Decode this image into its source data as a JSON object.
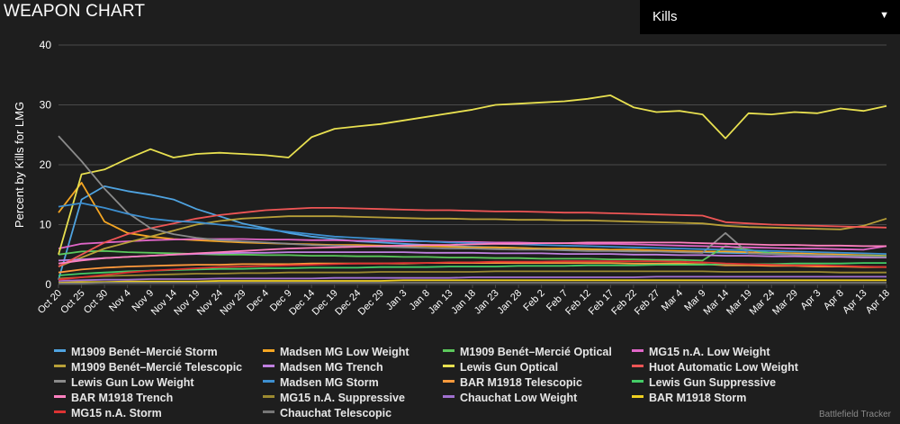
{
  "header": {
    "title": "WEAPON CHART"
  },
  "metric_select": {
    "value": "Kills",
    "arrow": "▼"
  },
  "watermark": "Battlefield Tracker",
  "colors": {
    "background": "#1e1e1e",
    "grid": "#4a4a4a",
    "axis_text": "#ffffff"
  },
  "chart_data": {
    "type": "line",
    "title": "",
    "xlabel": "",
    "ylabel": "Percent by Kills for LMG",
    "ylim": [
      0,
      40
    ],
    "yticks": [
      0,
      10,
      20,
      30,
      40
    ],
    "grid": true,
    "legend_position": "bottom",
    "x_tick_labels": [
      "Oct 20",
      "Oct 25",
      "Oct 30",
      "Nov 4",
      "Nov 9",
      "Nov 14",
      "Nov 19",
      "Nov 24",
      "Nov 29",
      "Dec 4",
      "Dec 9",
      "Dec 14",
      "Dec 19",
      "Dec 24",
      "Dec 29",
      "Jan 3",
      "Jan 8",
      "Jan 13",
      "Jan 18",
      "Jan 23",
      "Jan 28",
      "Feb 2",
      "Feb 7",
      "Feb 12",
      "Feb 17",
      "Feb 22",
      "Feb 27",
      "Mar 4",
      "Mar 9",
      "Mar 14",
      "Mar 19",
      "Mar 24",
      "Mar 29",
      "Apr 3",
      "Apr 8",
      "Apr 13",
      "Apr 18"
    ],
    "series": [
      {
        "name": "M1909 Benét–Mercié Storm",
        "color": "#4fa3e0",
        "values": [
          0.8,
          14.2,
          16.4,
          15.6,
          15.0,
          14.2,
          12.6,
          11.4,
          10.2,
          9.4,
          8.6,
          8.0,
          7.6,
          7.2,
          7.0,
          6.8,
          6.6,
          6.4,
          6.3,
          6.2,
          6.1,
          6.0,
          5.9,
          5.9,
          5.8,
          5.7,
          5.6,
          5.5,
          5.4,
          5.3,
          5.2,
          5.1,
          5.0,
          4.9,
          4.8,
          4.7,
          4.6
        ]
      },
      {
        "name": "Madsen MG Low Weight",
        "color": "#f5a623",
        "values": [
          12.0,
          17.0,
          10.5,
          8.6,
          8.0,
          7.6,
          7.4,
          7.2,
          7.0,
          6.9,
          6.8,
          6.7,
          6.6,
          6.6,
          6.5,
          6.4,
          6.4,
          6.3,
          6.2,
          6.2,
          6.1,
          6.0,
          6.0,
          5.9,
          5.8,
          5.8,
          5.7,
          5.6,
          5.5,
          5.5,
          5.4,
          5.3,
          5.2,
          5.1,
          5.0,
          4.9,
          4.8
        ]
      },
      {
        "name": "M1909 Benét–Mercié Optical",
        "color": "#5cc85c",
        "values": [
          5.0,
          5.5,
          5.6,
          5.4,
          5.3,
          5.2,
          5.1,
          5.0,
          5.0,
          4.9,
          4.9,
          4.8,
          4.8,
          4.7,
          4.7,
          4.6,
          4.6,
          4.5,
          4.5,
          4.4,
          4.4,
          4.3,
          4.3,
          4.3,
          4.2,
          4.2,
          4.1,
          4.1,
          4.0,
          6.4,
          5.8,
          5.2,
          5.0,
          4.9,
          4.8,
          4.8,
          4.7
        ]
      },
      {
        "name": "MG15 n.A. Low Weight",
        "color": "#e066c8",
        "values": [
          6.0,
          6.8,
          7.0,
          7.2,
          7.4,
          7.5,
          7.6,
          7.6,
          7.6,
          7.5,
          7.5,
          7.4,
          7.4,
          7.3,
          7.3,
          7.2,
          7.2,
          7.1,
          7.1,
          7.0,
          7.0,
          6.9,
          6.9,
          6.8,
          6.8,
          6.7,
          6.6,
          6.5,
          6.4,
          6.3,
          6.2,
          6.1,
          6.0,
          6.0,
          5.9,
          5.8,
          6.4
        ]
      },
      {
        "name": "M1909 Benét–Mercié Telescopic",
        "color": "#b8a038",
        "values": [
          3.0,
          4.5,
          6.0,
          7.0,
          8.0,
          9.0,
          10.0,
          10.6,
          11.0,
          11.2,
          11.4,
          11.4,
          11.4,
          11.3,
          11.2,
          11.1,
          11.0,
          11.0,
          10.9,
          10.9,
          10.8,
          10.8,
          10.7,
          10.7,
          10.6,
          10.5,
          10.4,
          10.3,
          10.2,
          9.8,
          9.6,
          9.5,
          9.4,
          9.3,
          9.2,
          9.8,
          11.0
        ]
      },
      {
        "name": "Madsen MG Trench",
        "color": "#c080e0",
        "values": [
          4.0,
          4.2,
          4.4,
          4.6,
          4.8,
          5.0,
          5.1,
          5.2,
          5.3,
          5.3,
          5.4,
          5.4,
          5.4,
          5.4,
          5.4,
          5.4,
          5.3,
          5.3,
          5.3,
          5.2,
          5.2,
          5.2,
          5.1,
          5.1,
          5.1,
          5.0,
          5.0,
          4.9,
          4.9,
          4.8,
          4.8,
          4.7,
          4.7,
          4.6,
          4.6,
          4.5,
          4.5
        ]
      },
      {
        "name": "Lewis Gun Optical",
        "color": "#e8e050",
        "values": [
          5.0,
          18.4,
          19.2,
          21.0,
          22.6,
          21.2,
          21.8,
          22.0,
          21.8,
          21.6,
          21.2,
          24.6,
          26.0,
          26.4,
          26.8,
          27.4,
          28.0,
          28.6,
          29.2,
          30.0,
          30.2,
          30.4,
          30.6,
          31.0,
          31.6,
          29.6,
          28.8,
          29.0,
          28.4,
          24.4,
          28.6,
          28.4,
          28.8,
          28.6,
          29.4,
          29.0,
          29.8
        ]
      },
      {
        "name": "Huot Automatic Low Weight",
        "color": "#ee5555",
        "values": [
          3.0,
          5.0,
          7.0,
          8.4,
          9.4,
          10.2,
          11.0,
          11.6,
          12.0,
          12.4,
          12.6,
          12.8,
          12.8,
          12.7,
          12.6,
          12.5,
          12.4,
          12.4,
          12.3,
          12.2,
          12.2,
          12.1,
          12.0,
          12.0,
          11.9,
          11.8,
          11.7,
          11.6,
          11.5,
          10.4,
          10.2,
          10.0,
          9.9,
          9.8,
          9.7,
          9.6,
          9.5
        ]
      },
      {
        "name": "Lewis Gun Low Weight",
        "color": "#8a8a8a",
        "values": [
          24.8,
          20.6,
          16.0,
          12.0,
          9.4,
          8.4,
          7.8,
          7.4,
          7.2,
          7.0,
          6.8,
          6.6,
          6.5,
          6.4,
          6.3,
          6.2,
          6.1,
          6.0,
          6.0,
          5.9,
          5.8,
          5.8,
          5.7,
          5.6,
          5.6,
          5.5,
          5.5,
          5.4,
          5.3,
          8.6,
          5.2,
          5.1,
          5.0,
          4.9,
          4.8,
          4.7,
          4.6
        ]
      },
      {
        "name": "Madsen MG Storm",
        "color": "#3d8fd0",
        "values": [
          13.0,
          13.6,
          12.8,
          11.8,
          11.0,
          10.6,
          10.4,
          10.0,
          9.6,
          9.2,
          8.8,
          8.4,
          8.0,
          7.8,
          7.6,
          7.4,
          7.2,
          7.0,
          6.9,
          6.8,
          6.7,
          6.6,
          6.5,
          6.4,
          6.3,
          6.2,
          6.1,
          6.0,
          5.9,
          5.8,
          5.7,
          5.6,
          5.5,
          5.4,
          5.3,
          5.2,
          5.1
        ]
      },
      {
        "name": "BAR M1918 Telescopic",
        "color": "#ff9a3c",
        "values": [
          2.0,
          2.5,
          2.8,
          3.0,
          3.1,
          3.2,
          3.3,
          3.3,
          3.4,
          3.4,
          3.4,
          3.5,
          3.5,
          3.5,
          3.5,
          3.5,
          3.6,
          3.6,
          3.6,
          3.6,
          3.6,
          3.6,
          3.6,
          3.6,
          3.6,
          3.5,
          3.5,
          3.5,
          3.4,
          3.2,
          3.2,
          3.1,
          3.1,
          3.0,
          3.0,
          2.9,
          2.9
        ]
      },
      {
        "name": "Lewis Gun Suppressive",
        "color": "#44cc66",
        "values": [
          1.5,
          1.8,
          2.0,
          2.2,
          2.3,
          2.4,
          2.5,
          2.6,
          2.6,
          2.7,
          2.7,
          2.8,
          2.8,
          2.8,
          2.9,
          2.9,
          2.9,
          3.0,
          3.0,
          3.0,
          3.1,
          3.1,
          3.1,
          3.2,
          3.2,
          3.2,
          3.3,
          3.3,
          3.3,
          3.4,
          3.4,
          3.4,
          3.5,
          3.5,
          3.5,
          3.6,
          3.6
        ]
      },
      {
        "name": "BAR M1918 Trench",
        "color": "#ff80c0",
        "values": [
          3.5,
          4.0,
          4.4,
          4.6,
          4.8,
          5.0,
          5.2,
          5.4,
          5.6,
          5.8,
          6.0,
          6.1,
          6.2,
          6.3,
          6.4,
          6.5,
          6.6,
          6.6,
          6.7,
          6.8,
          6.8,
          6.9,
          6.9,
          7.0,
          7.0,
          7.0,
          7.0,
          7.0,
          6.9,
          6.8,
          6.7,
          6.6,
          6.6,
          6.5,
          6.5,
          6.4,
          6.4
        ]
      },
      {
        "name": "MG15 n.A. Suppressive",
        "color": "#9c8a30",
        "values": [
          1.0,
          1.2,
          1.4,
          1.5,
          1.6,
          1.7,
          1.8,
          1.8,
          1.9,
          1.9,
          2.0,
          2.0,
          2.0,
          2.0,
          2.1,
          2.1,
          2.1,
          2.1,
          2.1,
          2.2,
          2.2,
          2.2,
          2.2,
          2.2,
          2.2,
          2.2,
          2.2,
          2.2,
          2.2,
          2.1,
          2.1,
          2.1,
          2.1,
          2.1,
          2.0,
          2.0,
          2.0
        ]
      },
      {
        "name": "Chauchat Low Weight",
        "color": "#a070d0",
        "values": [
          0.6,
          0.7,
          0.8,
          0.8,
          0.9,
          0.9,
          0.9,
          1.0,
          1.0,
          1.0,
          1.0,
          1.0,
          1.1,
          1.1,
          1.1,
          1.1,
          1.1,
          1.1,
          1.2,
          1.2,
          1.2,
          1.2,
          1.2,
          1.2,
          1.2,
          1.2,
          1.3,
          1.3,
          1.3,
          1.3,
          1.3,
          1.3,
          1.3,
          1.3,
          1.3,
          1.3,
          1.3
        ]
      },
      {
        "name": "BAR M1918 Storm",
        "color": "#f0d020",
        "values": [
          0.3,
          0.4,
          0.4,
          0.5,
          0.5,
          0.5,
          0.5,
          0.6,
          0.6,
          0.6,
          0.6,
          0.6,
          0.6,
          0.6,
          0.6,
          0.7,
          0.7,
          0.7,
          0.7,
          0.7,
          0.7,
          0.7,
          0.7,
          0.7,
          0.7,
          0.7,
          0.7,
          0.7,
          0.7,
          0.7,
          0.7,
          0.7,
          0.7,
          0.7,
          0.7,
          0.7,
          0.7
        ]
      },
      {
        "name": "MG15 n.A. Storm",
        "color": "#dd3333",
        "values": [
          0.8,
          1.2,
          1.6,
          2.0,
          2.3,
          2.5,
          2.7,
          2.9,
          3.0,
          3.1,
          3.2,
          3.3,
          3.4,
          3.5,
          3.5,
          3.6,
          3.6,
          3.7,
          3.7,
          3.8,
          3.8,
          3.8,
          3.9,
          3.9,
          3.9,
          3.9,
          3.9,
          3.8,
          3.7,
          3.5,
          3.4,
          3.3,
          3.2,
          3.2,
          3.1,
          3.0,
          2.9
        ]
      },
      {
        "name": "Chauchat Telescopic",
        "color": "#777777",
        "values": [
          0.2,
          0.2,
          0.3,
          0.3,
          0.3,
          0.3,
          0.3,
          0.3,
          0.3,
          0.3,
          0.3,
          0.3,
          0.3,
          0.3,
          0.3,
          0.3,
          0.3,
          0.3,
          0.3,
          0.3,
          0.3,
          0.3,
          0.3,
          0.3,
          0.3,
          0.3,
          0.3,
          0.3,
          0.3,
          0.3,
          0.3,
          0.3,
          0.3,
          0.3,
          0.3,
          0.3,
          0.3
        ]
      }
    ]
  }
}
